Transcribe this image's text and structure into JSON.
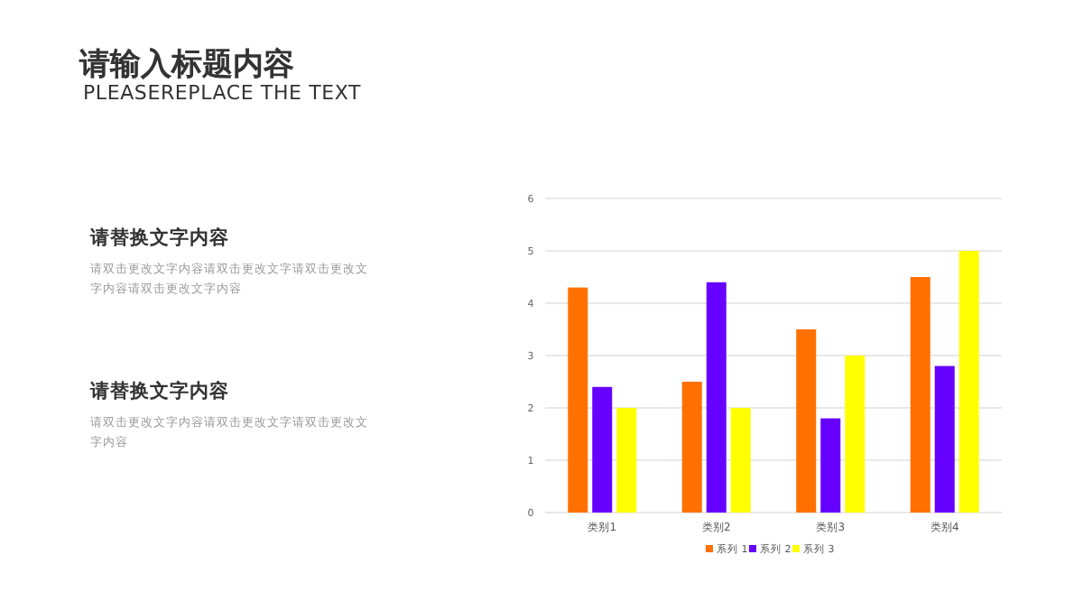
{
  "chart_data": {
    "type": "bar",
    "title": "请输入标题内容",
    "subtitle": "PLEASEREPLACE THE TEXT",
    "annotations": [
      "请替换文字内容",
      "请双击更改文字内容请双击更改文字请双击更改文字内容请双击更改文字内容",
      "请替换文字内容",
      "请双击更改文字内容请双击更改文字请双击更改文字内容"
    ],
    "categories": [
      "类别1",
      "类别2",
      "类别3",
      "类别4"
    ],
    "series": [
      {
        "name": "系列 1",
        "color": "#ff7000",
        "values": [
          4.3,
          2.5,
          3.5,
          4.5
        ]
      },
      {
        "name": "系列 2",
        "color": "#6600ff",
        "values": [
          2.4,
          4.4,
          1.8,
          2.8
        ]
      },
      {
        "name": "系列 3",
        "color": "#ffff00",
        "values": [
          2,
          2,
          3,
          5
        ]
      }
    ],
    "ylim": [
      0,
      6
    ],
    "yticks": [
      0,
      1,
      2,
      3,
      4,
      5,
      6
    ],
    "grid": "y",
    "legend": "bottom"
  }
}
